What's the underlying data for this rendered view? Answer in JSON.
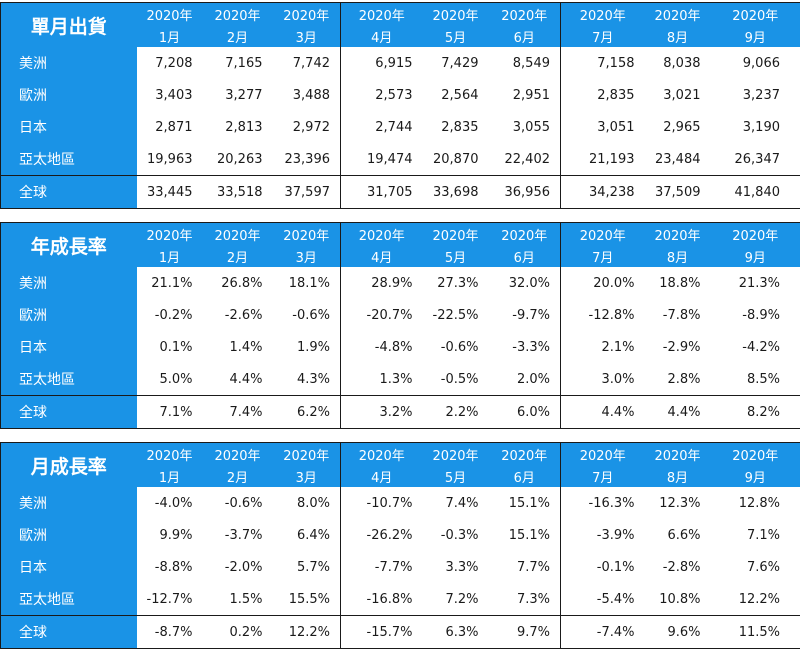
{
  "months": [
    [
      "2020年",
      "1月"
    ],
    [
      "2020年",
      "2月"
    ],
    [
      "2020年",
      "3月"
    ],
    [
      "2020年",
      "4月"
    ],
    [
      "2020年",
      "5月"
    ],
    [
      "2020年",
      "6月"
    ],
    [
      "2020年",
      "7月"
    ],
    [
      "2020年",
      "8月"
    ],
    [
      "2020年",
      "9月"
    ]
  ],
  "tables": [
    {
      "title": "單月出貨",
      "rows": [
        {
          "label": "美洲",
          "values": [
            "7,208",
            "7,165",
            "7,742",
            "6,915",
            "7,429",
            "8,549",
            "7,158",
            "8,038",
            "9,066"
          ]
        },
        {
          "label": "歐洲",
          "values": [
            "3,403",
            "3,277",
            "3,488",
            "2,573",
            "2,564",
            "2,951",
            "2,835",
            "3,021",
            "3,237"
          ]
        },
        {
          "label": "日本",
          "values": [
            "2,871",
            "2,813",
            "2,972",
            "2,744",
            "2,835",
            "3,055",
            "3,051",
            "2,965",
            "3,190"
          ]
        },
        {
          "label": "亞太地區",
          "values": [
            "19,963",
            "20,263",
            "23,396",
            "19,474",
            "20,870",
            "22,402",
            "21,193",
            "23,484",
            "26,347"
          ]
        },
        {
          "label": "全球",
          "values": [
            "33,445",
            "33,518",
            "37,597",
            "31,705",
            "33,698",
            "36,956",
            "34,238",
            "37,509",
            "41,840"
          ],
          "total": true
        }
      ]
    },
    {
      "title": "年成長率",
      "rows": [
        {
          "label": "美洲",
          "values": [
            "21.1%",
            "26.8%",
            "18.1%",
            "28.9%",
            "27.3%",
            "32.0%",
            "20.0%",
            "18.8%",
            "21.3%"
          ]
        },
        {
          "label": "歐洲",
          "values": [
            "-0.2%",
            "-2.6%",
            "-0.6%",
            "-20.7%",
            "-22.5%",
            "-9.7%",
            "-12.8%",
            "-7.8%",
            "-8.9%"
          ]
        },
        {
          "label": "日本",
          "values": [
            "0.1%",
            "1.4%",
            "1.9%",
            "-4.8%",
            "-0.6%",
            "-3.3%",
            "2.1%",
            "-2.9%",
            "-4.2%"
          ]
        },
        {
          "label": "亞太地區",
          "values": [
            "5.0%",
            "4.4%",
            "4.3%",
            "1.3%",
            "-0.5%",
            "2.0%",
            "3.0%",
            "2.8%",
            "8.5%"
          ]
        },
        {
          "label": "全球",
          "values": [
            "7.1%",
            "7.4%",
            "6.2%",
            "3.2%",
            "2.2%",
            "6.0%",
            "4.4%",
            "4.4%",
            "8.2%"
          ],
          "total": true
        }
      ]
    },
    {
      "title": "月成長率",
      "rows": [
        {
          "label": "美洲",
          "values": [
            "-4.0%",
            "-0.6%",
            "8.0%",
            "-10.7%",
            "7.4%",
            "15.1%",
            "-16.3%",
            "12.3%",
            "12.8%"
          ]
        },
        {
          "label": "歐洲",
          "values": [
            "9.9%",
            "-3.7%",
            "6.4%",
            "-26.2%",
            "-0.3%",
            "15.1%",
            "-3.9%",
            "6.6%",
            "7.1%"
          ]
        },
        {
          "label": "日本",
          "values": [
            "-8.8%",
            "-2.0%",
            "5.7%",
            "-7.7%",
            "3.3%",
            "7.7%",
            "-0.1%",
            "-2.8%",
            "7.6%"
          ]
        },
        {
          "label": "亞太地區",
          "values": [
            "-12.7%",
            "1.5%",
            "15.5%",
            "-16.8%",
            "7.2%",
            "7.3%",
            "-5.4%",
            "10.8%",
            "12.2%"
          ]
        },
        {
          "label": "全球",
          "values": [
            "-8.7%",
            "0.2%",
            "12.2%",
            "-15.7%",
            "6.3%",
            "9.7%",
            "-7.4%",
            "9.6%",
            "11.5%"
          ],
          "total": true
        }
      ]
    }
  ],
  "colors": {
    "header_bg": "#1a93e6",
    "header_text": "#ffffff",
    "body_text": "#1a1a1a",
    "border": "#1a1a1a"
  }
}
